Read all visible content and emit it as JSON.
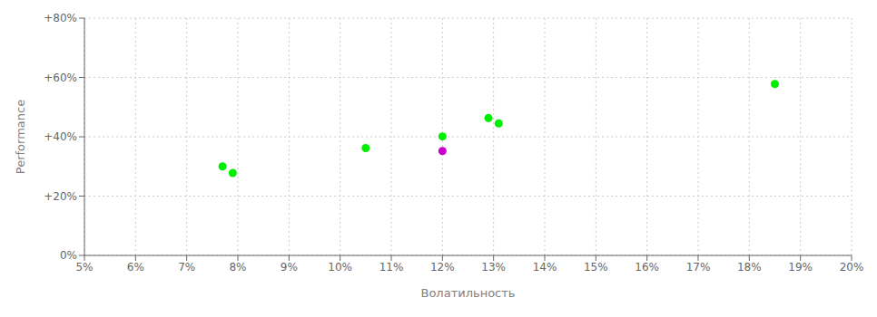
{
  "chart_data": {
    "type": "scatter",
    "xlabel": "Волатильность",
    "ylabel": "Performance",
    "xlim": [
      0.05,
      0.2
    ],
    "ylim": [
      0.0,
      0.8
    ],
    "xticks": [
      {
        "value": 0.05,
        "label": "5%"
      },
      {
        "value": 0.06,
        "label": "6%"
      },
      {
        "value": 0.07,
        "label": "7%"
      },
      {
        "value": 0.08,
        "label": "8%"
      },
      {
        "value": 0.09,
        "label": "9%"
      },
      {
        "value": 0.1,
        "label": "10%"
      },
      {
        "value": 0.11,
        "label": "11%"
      },
      {
        "value": 0.12,
        "label": "12%"
      },
      {
        "value": 0.13,
        "label": "13%"
      },
      {
        "value": 0.14,
        "label": "14%"
      },
      {
        "value": 0.15,
        "label": "15%"
      },
      {
        "value": 0.16,
        "label": "16%"
      },
      {
        "value": 0.17,
        "label": "17%"
      },
      {
        "value": 0.18,
        "label": "18%"
      },
      {
        "value": 0.19,
        "label": "19%"
      },
      {
        "value": 0.2,
        "label": "20%"
      }
    ],
    "yticks": [
      {
        "value": 0.0,
        "label": "0%"
      },
      {
        "value": 0.2,
        "label": "+20%"
      },
      {
        "value": 0.4,
        "label": "+40%"
      },
      {
        "value": 0.6,
        "label": "+60%"
      },
      {
        "value": 0.8,
        "label": "+80%"
      }
    ],
    "grid": true,
    "series": [
      {
        "color": "#00ee00",
        "x": [
          0.077,
          0.079,
          0.105,
          0.12,
          0.129,
          0.131,
          0.185
        ],
        "values": [
          0.3,
          0.278,
          0.362,
          0.401,
          0.463,
          0.445,
          0.578
        ]
      },
      {
        "color": "#cc00cc",
        "x": [
          0.12
        ],
        "values": [
          0.352
        ]
      }
    ]
  }
}
